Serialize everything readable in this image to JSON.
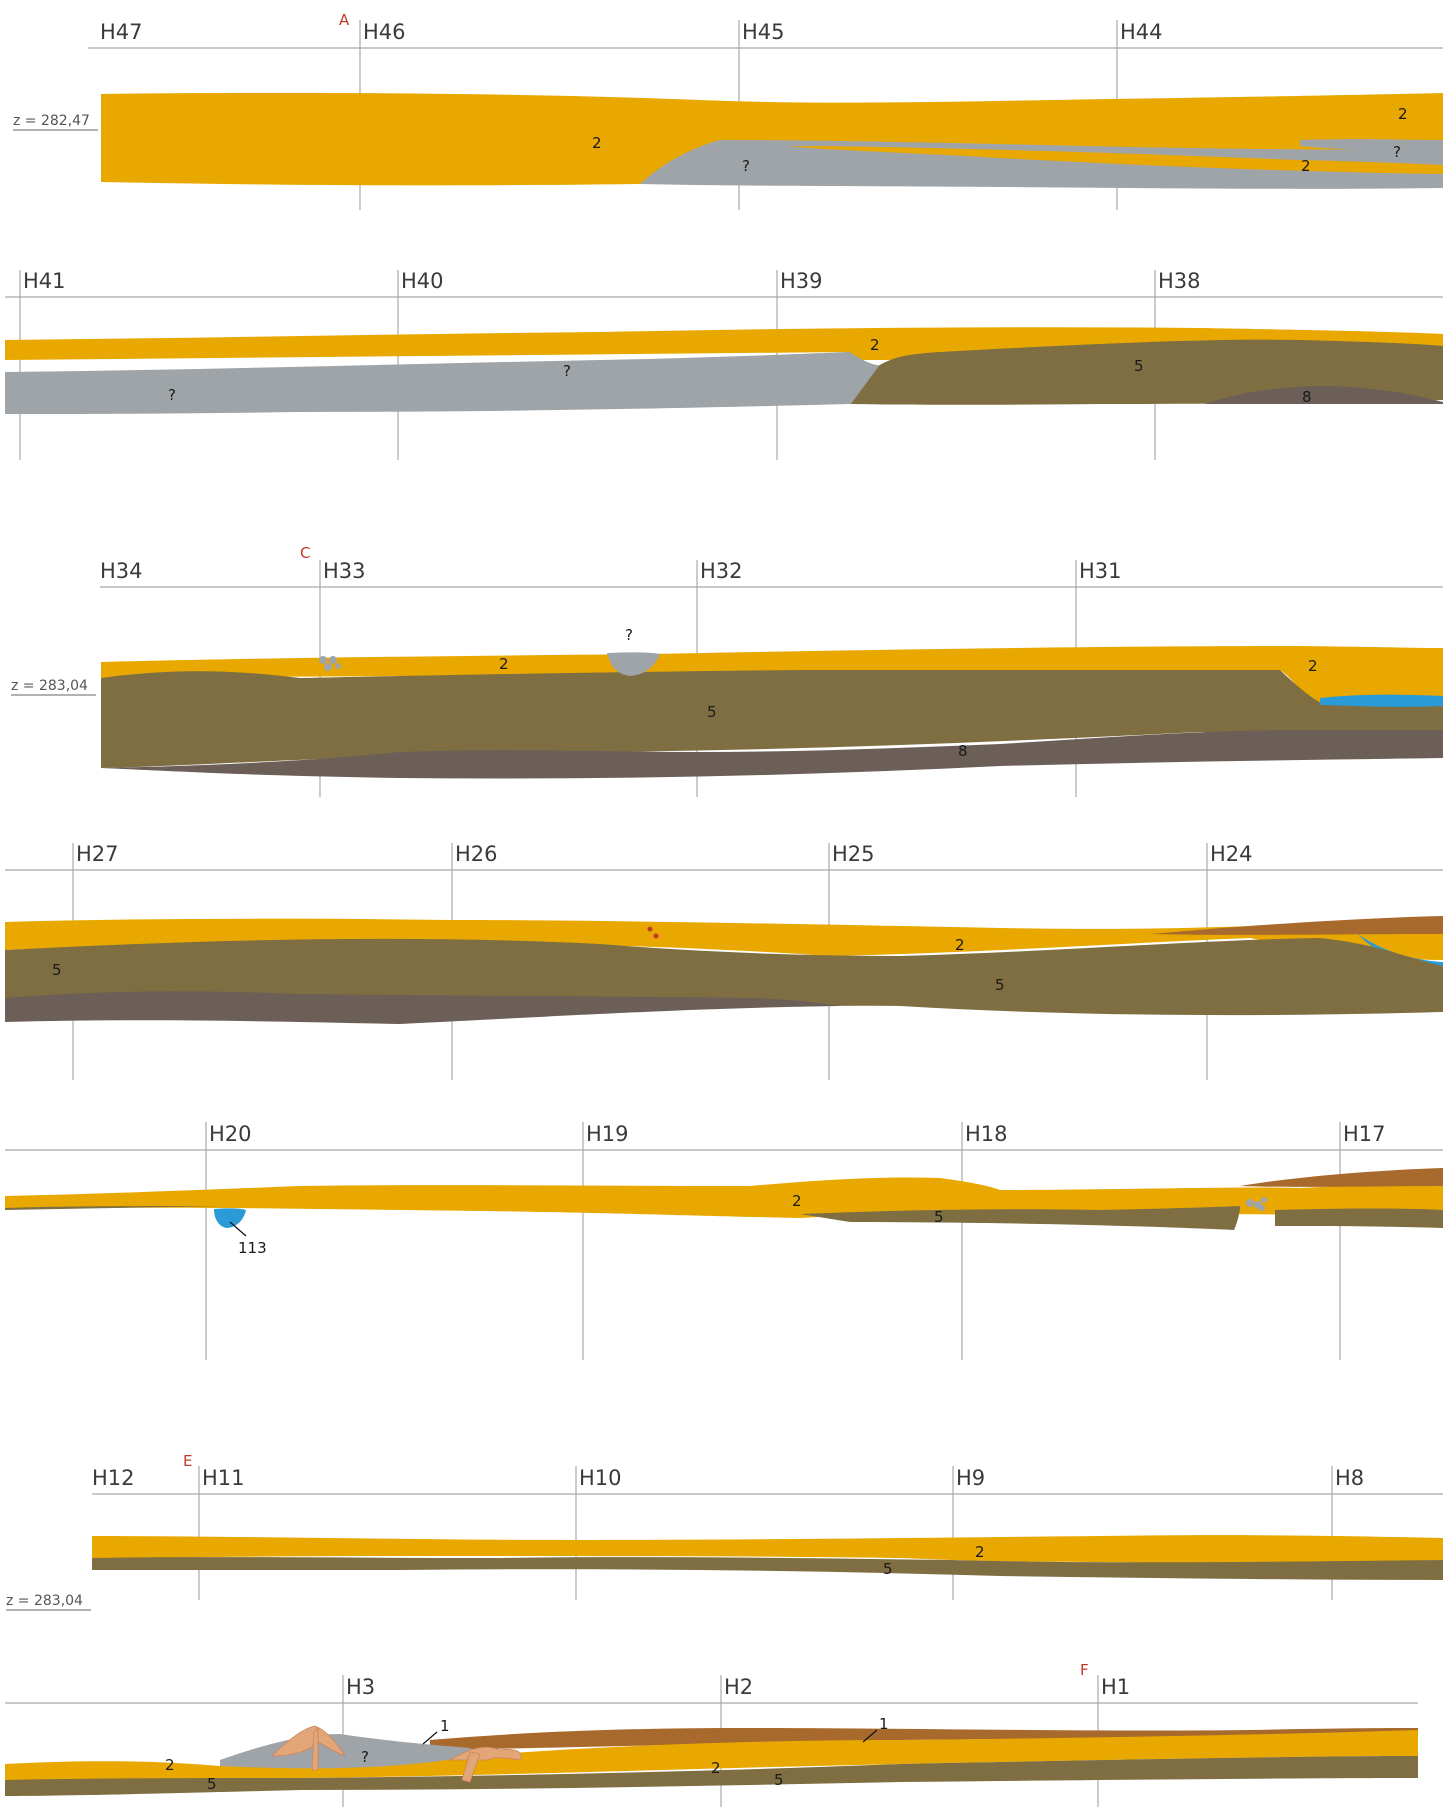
{
  "colors": {
    "layer_2": "#e9a800",
    "layer_5": "#7e6e41",
    "layer_8": "#6b5f58",
    "unknown": "#9fa4a8",
    "water": "#2a9bd6",
    "layer_1": "#a8692c",
    "root": "#e3a679",
    "red_mark": "#c0392b"
  },
  "icons": [
    "root-mark-icon",
    "stone-cluster-icon"
  ],
  "rows": [
    {
      "grid": [
        "H47",
        "H46",
        "H45",
        "H44"
      ],
      "markers": [
        "A"
      ],
      "z": "z = 282,47",
      "labels": [
        "2",
        "?",
        "2",
        "?",
        "2"
      ]
    },
    {
      "grid": [
        "H41",
        "H40",
        "H39",
        "H38"
      ],
      "markers": [],
      "z": "",
      "labels": [
        "?",
        "?",
        "2",
        "5",
        "8"
      ]
    },
    {
      "grid": [
        "H34",
        "H33",
        "H32",
        "H31"
      ],
      "markers": [
        "C"
      ],
      "z": "z = 283,04",
      "labels": [
        "2",
        "?",
        "5",
        "8",
        "2"
      ]
    },
    {
      "grid": [
        "H27",
        "H26",
        "H25",
        "H24"
      ],
      "markers": [],
      "z": "",
      "labels": [
        "5",
        "2",
        "5"
      ]
    },
    {
      "grid": [
        "H20",
        "H19",
        "H18",
        "H17"
      ],
      "markers": [],
      "z": "",
      "labels": [
        "113",
        "2",
        "5"
      ]
    },
    {
      "grid": [
        "H12",
        "H11",
        "H10",
        "H9",
        "H8"
      ],
      "markers": [
        "E"
      ],
      "z": "z = 283,04",
      "labels": [
        "2",
        "5"
      ]
    },
    {
      "grid": [
        "H3",
        "H2",
        "H1"
      ],
      "markers": [
        "F"
      ],
      "z": "",
      "labels": [
        "1",
        "?",
        "1",
        "2",
        "5",
        "2",
        "5"
      ]
    }
  ]
}
